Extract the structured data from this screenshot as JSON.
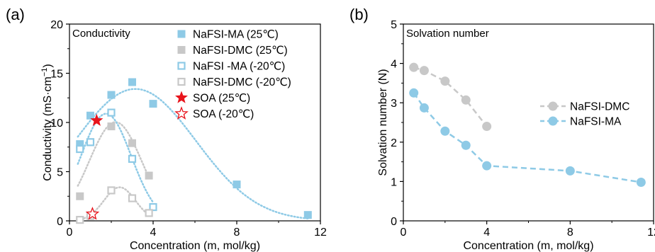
{
  "chart_data": [
    {
      "panel_label": "(a)",
      "type": "scatter",
      "inner_label": "Conductivity",
      "xlabel": "Concentration (m, mol/kg)",
      "ylabel_main": "Conductivity (mS·cm",
      "ylabel_sup": "−1",
      "ylabel_end": ")",
      "xlim": [
        0,
        12
      ],
      "ylim": [
        0,
        20
      ],
      "xticks": [
        0,
        4,
        8,
        12
      ],
      "yticks": [
        0,
        5,
        10,
        15,
        20
      ],
      "legend_position": "top-right",
      "series": [
        {
          "name": "NaFSI-MA (25℃)",
          "marker": "square-filled",
          "color": "#8ecae6",
          "x": [
            0.5,
            1,
            2,
            3,
            4,
            8,
            11.4
          ],
          "y": [
            7.8,
            10.7,
            12.8,
            14.1,
            11.9,
            3.7,
            0.6
          ]
        },
        {
          "name": "NaFSI-DMC (25℃)",
          "marker": "square-filled",
          "color": "#c8c8c8",
          "x": [
            0.5,
            1,
            2,
            3,
            3.8
          ],
          "y": [
            2.5,
            8.0,
            9.6,
            7.9,
            4.6
          ]
        },
        {
          "name": "NaFSI -MA (-20℃)",
          "marker": "square-open",
          "color": "#8ecae6",
          "x": [
            0.5,
            1,
            2,
            3,
            4
          ],
          "y": [
            7.3,
            8.0,
            11.0,
            6.3,
            1.4
          ]
        },
        {
          "name": "NaFSI-DMC (-20℃)",
          "marker": "square-open",
          "color": "#c8c8c8",
          "x": [
            0.5,
            1,
            2,
            3,
            3.8
          ],
          "y": [
            0.1,
            0.5,
            3.1,
            2.3,
            0.8
          ]
        },
        {
          "name": "SOA (25℃)",
          "marker": "star-filled",
          "color": "#e8141c",
          "x": [
            1.3
          ],
          "y": [
            10.2
          ]
        },
        {
          "name": "SOA (-20℃)",
          "marker": "star-open",
          "color": "#e8141c",
          "x": [
            1.1
          ],
          "y": [
            0.7
          ]
        }
      ]
    },
    {
      "panel_label": "(b)",
      "type": "line",
      "inner_label": "Solvation number",
      "xlabel": "Concentration (m, mol/kg)",
      "ylabel": "Solvation number (N)",
      "xlim": [
        0,
        12
      ],
      "ylim": [
        0,
        5
      ],
      "xticks": [
        0,
        4,
        8,
        12
      ],
      "yticks": [
        0,
        1,
        2,
        3,
        4,
        5
      ],
      "legend_position": "center-right",
      "series": [
        {
          "name": "NaFSI-DMC",
          "marker": "circle",
          "color": "#c8c8c8",
          "x": [
            0.5,
            1,
            2,
            3,
            4
          ],
          "y": [
            3.9,
            3.82,
            3.55,
            3.07,
            2.4
          ]
        },
        {
          "name": "NaFSI-MA",
          "marker": "circle",
          "color": "#8ecae6",
          "x": [
            0.5,
            1,
            2,
            3,
            4,
            8,
            11.4
          ],
          "y": [
            3.25,
            2.87,
            2.28,
            1.92,
            1.4,
            1.27,
            0.98
          ]
        }
      ]
    }
  ]
}
